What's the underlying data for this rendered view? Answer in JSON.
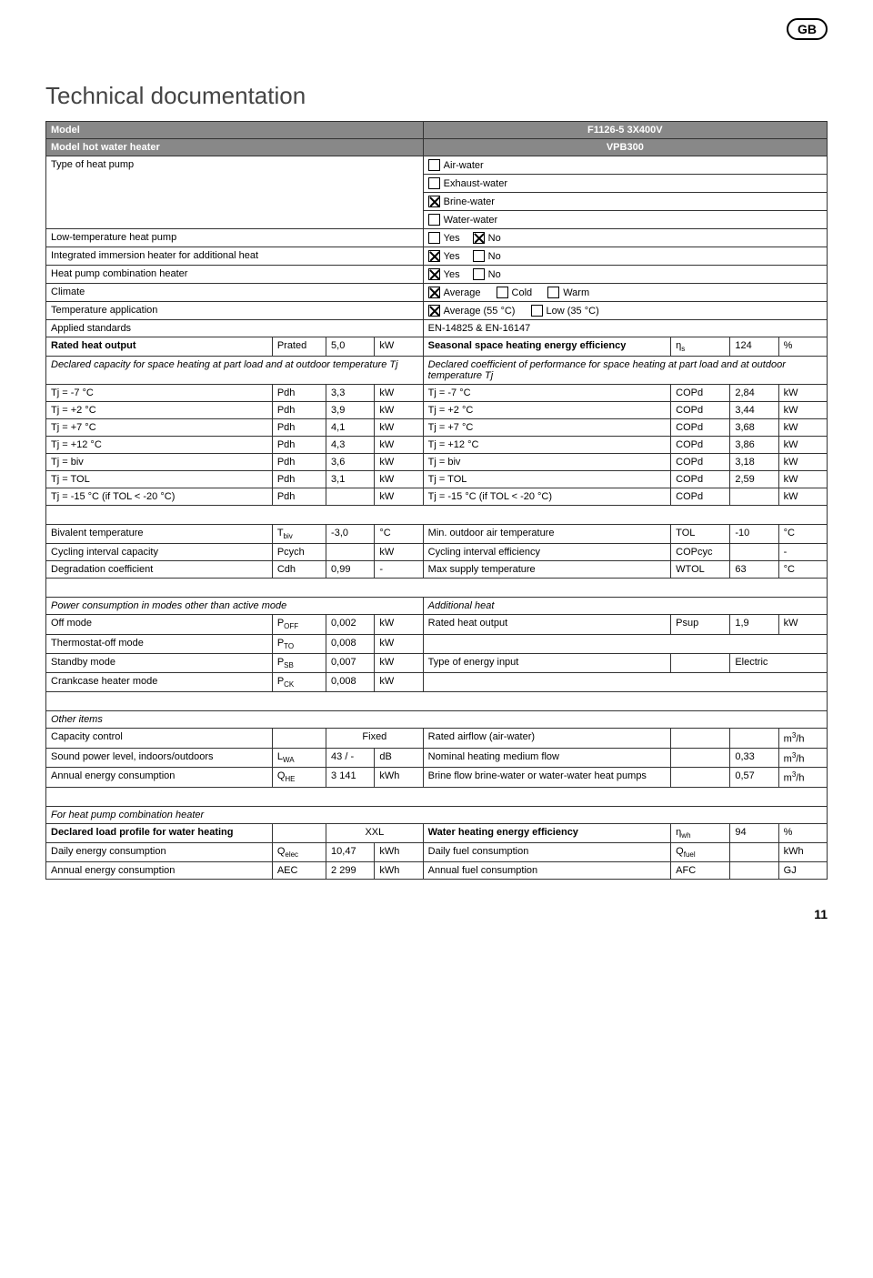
{
  "badge": "GB",
  "title": "Technical documentation",
  "pageNumber": "11",
  "header": {
    "modelLabel": "Model",
    "modelValue": "F1126-5 3X400V",
    "hwhLabel": "Model hot water heater",
    "hwhValue": "VPB300"
  },
  "typeRow": {
    "label": "Type of heat pump",
    "options": [
      {
        "label": "Air-water",
        "checked": false
      },
      {
        "label": "Exhaust-water",
        "checked": false
      },
      {
        "label": "Brine-water",
        "checked": true
      },
      {
        "label": "Water-water",
        "checked": false
      }
    ]
  },
  "yesNoRows": [
    {
      "label": "Low-temperature heat pump",
      "yes": false,
      "no": true
    },
    {
      "label": "Integrated immersion heater for additional heat",
      "yes": true,
      "no": false
    },
    {
      "label": "Heat pump combination heater",
      "yes": true,
      "no": false
    }
  ],
  "climate": {
    "label": "Climate",
    "options": [
      {
        "label": "Average",
        "checked": true
      },
      {
        "label": "Cold",
        "checked": false
      },
      {
        "label": "Warm",
        "checked": false
      }
    ]
  },
  "tempApp": {
    "label": "Temperature application",
    "options": [
      {
        "label": "Average (55 °C)",
        "checked": true
      },
      {
        "label": "Low (35 °C)",
        "checked": false
      }
    ]
  },
  "standards": {
    "label": "Applied standards",
    "value": "EN-14825 & EN-16147"
  },
  "ratedHeat": {
    "leftLabel": "Rated heat output",
    "leftSym": "Prated",
    "leftVal": "5,0",
    "leftUnit": "kW",
    "rightLabel": "Seasonal space heating energy efficiency",
    "rightSym": "ηs",
    "rightSub": "s",
    "rightVal": "124",
    "rightUnit": "%"
  },
  "declHeaders": {
    "left": "Declared capacity for space heating at part load and at outdoor temperature Tj",
    "right": "Declared coefficient of performance for space heating at part load and at outdoor temperature Tj"
  },
  "tjRows": [
    {
      "l": "Tj = -7 °C",
      "sym": "Pdh",
      "v": "3,3",
      "u": "kW",
      "r": "Tj = -7 °C",
      "rsym": "COPd",
      "rv": "2,84",
      "ru": "kW"
    },
    {
      "l": "Tj = +2 °C",
      "sym": "Pdh",
      "v": "3,9",
      "u": "kW",
      "r": "Tj = +2 °C",
      "rsym": "COPd",
      "rv": "3,44",
      "ru": "kW"
    },
    {
      "l": "Tj = +7 °C",
      "sym": "Pdh",
      "v": "4,1",
      "u": "kW",
      "r": "Tj = +7 °C",
      "rsym": "COPd",
      "rv": "3,68",
      "ru": "kW"
    },
    {
      "l": "Tj = +12 °C",
      "sym": "Pdh",
      "v": "4,3",
      "u": "kW",
      "r": "Tj = +12 °C",
      "rsym": "COPd",
      "rv": "3,86",
      "ru": "kW"
    },
    {
      "l": "Tj = biv",
      "sym": "Pdh",
      "v": "3,6",
      "u": "kW",
      "r": "Tj = biv",
      "rsym": "COPd",
      "rv": "3,18",
      "ru": "kW"
    },
    {
      "l": "Tj = TOL",
      "sym": "Pdh",
      "v": "3,1",
      "u": "kW",
      "r": "Tj = TOL",
      "rsym": "COPd",
      "rv": "2,59",
      "ru": "kW"
    },
    {
      "l": "Tj = -15 °C (if TOL < -20 °C)",
      "sym": "Pdh",
      "v": "",
      "u": "kW",
      "r": "Tj = -15 °C (if TOL < -20 °C)",
      "rsym": "COPd",
      "rv": "",
      "ru": "kW"
    }
  ],
  "block2": [
    {
      "l": "Bivalent temperature",
      "sym": "Tbiv",
      "sub": "biv",
      "v": "-3,0",
      "u": "°C",
      "r": "Min. outdoor air temperature",
      "rsym": "TOL",
      "rv": "-10",
      "ru": "°C"
    },
    {
      "l": "Cycling interval capacity",
      "sym": "Pcych",
      "v": "",
      "u": "kW",
      "r": "Cycling interval efficiency",
      "rsym": "COPcyc",
      "rv": "",
      "ru": "-"
    },
    {
      "l": "Degradation coefficient",
      "sym": "Cdh",
      "v": "0,99",
      "u": "-",
      "r": "Max supply temperature",
      "rsym": "WTOL",
      "rv": "63",
      "ru": "°C"
    }
  ],
  "powerHeader": {
    "left": "Power consumption in modes other than active mode",
    "right": "Additional heat"
  },
  "powerRows": [
    {
      "l": "Off mode",
      "symBase": "P",
      "sub": "OFF",
      "v": "0,002",
      "u": "kW",
      "r": "Rated heat output",
      "rsym": "Psup",
      "rv": "1,9",
      "ru": "kW"
    },
    {
      "l": "Thermostat-off mode",
      "symBase": "P",
      "sub": "TO",
      "v": "0,008",
      "u": "kW",
      "r": "",
      "rsym": "",
      "rv": "",
      "ru": ""
    },
    {
      "l": "Standby mode",
      "symBase": "P",
      "sub": "SB",
      "v": "0,007",
      "u": "kW",
      "r": "Type of energy input",
      "rsym": "",
      "rv": "Electric",
      "ru": "",
      "wide": true
    },
    {
      "l": "Crankcase heater mode",
      "symBase": "P",
      "sub": "CK",
      "v": "0,008",
      "u": "kW",
      "r": "",
      "rsym": "",
      "rv": "",
      "ru": ""
    }
  ],
  "otherHeader": "Other items",
  "otherRows": [
    {
      "l": "Capacity control",
      "sym": "",
      "v": "Fixed",
      "u": "",
      "r": "Rated airflow (air-water)",
      "rsym": "",
      "rv": "",
      "ru": "m3/h",
      "sup": "3"
    },
    {
      "l": "Sound power level, indoors/outdoors",
      "symBase": "L",
      "sub": "WA",
      "v": "43 / -",
      "u": "dB",
      "r": "Nominal heating medium flow",
      "rsym": "",
      "rv": "0,33",
      "ru": "m3/h",
      "sup": "3"
    },
    {
      "l": "Annual energy consumption",
      "symBase": "Q",
      "sub": "HE",
      "v": "3 141",
      "u": "kWh",
      "r": "Brine flow brine-water or water-water heat pumps",
      "rsym": "",
      "rv": "0,57",
      "ru": "m3/h",
      "sup": "3"
    }
  ],
  "combHeader": "For heat pump combination heater",
  "combRow1": {
    "l": "Declared load profile for water heating",
    "v": "XXL",
    "r": "Water heating energy efficiency",
    "rsymBase": "η",
    "rsub": "wh",
    "rv": "94",
    "ru": "%"
  },
  "combRows": [
    {
      "l": "Daily energy consumption",
      "symBase": "Q",
      "sub": "elec",
      "v": "10,47",
      "u": "kWh",
      "r": "Daily fuel consumption",
      "rsymBase": "Q",
      "rsub": "fuel",
      "rv": "",
      "ru": "kWh"
    },
    {
      "l": "Annual energy consumption",
      "sym": "AEC",
      "v": "2 299",
      "u": "kWh",
      "r": "Annual fuel consumption",
      "rsym": "AFC",
      "rv": "",
      "ru": "GJ"
    }
  ],
  "labels": {
    "yes": "Yes",
    "no": "No"
  }
}
